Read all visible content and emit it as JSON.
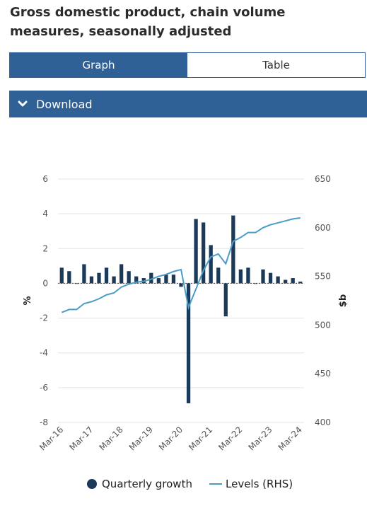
{
  "page": {
    "title": "Gross domestic product, chain volume measures, seasonally adjusted"
  },
  "tabs": [
    {
      "label": "Graph",
      "active": true
    },
    {
      "label": "Table",
      "active": false
    }
  ],
  "download": {
    "label": "Download",
    "icon": "chevron-down-icon"
  },
  "colors": {
    "accent": "#2f6196",
    "bar": "#1b3a5a",
    "line": "#4a9cc7"
  },
  "chart_data": {
    "type": "bar+line",
    "title": "",
    "x_tick_labels": [
      "Mar-16",
      "Mar-17",
      "Mar-18",
      "Mar-19",
      "Mar-20",
      "Mar-21",
      "Mar-22",
      "Mar-23",
      "Mar-24"
    ],
    "quarters": [
      "Mar-16",
      "Jun-16",
      "Sep-16",
      "Dec-16",
      "Mar-17",
      "Jun-17",
      "Sep-17",
      "Dec-17",
      "Mar-18",
      "Jun-18",
      "Sep-18",
      "Dec-18",
      "Mar-19",
      "Jun-19",
      "Sep-19",
      "Dec-19",
      "Mar-20",
      "Jun-20",
      "Sep-20",
      "Dec-20",
      "Mar-21",
      "Jun-21",
      "Sep-21",
      "Dec-21",
      "Mar-22",
      "Jun-22",
      "Sep-22",
      "Dec-22",
      "Mar-23",
      "Jun-23",
      "Sep-23",
      "Dec-23",
      "Mar-24"
    ],
    "left_axis": {
      "label": "%",
      "ylim": [
        -8,
        6
      ],
      "ticks": [
        "6",
        "4",
        "2",
        "0",
        "-2",
        "-4",
        "-6",
        "-8"
      ]
    },
    "right_axis": {
      "label": "$b",
      "ylim": [
        400,
        650
      ],
      "ticks": [
        "650",
        "600",
        "550",
        "500",
        "450",
        "400"
      ]
    },
    "grid": true,
    "legend_position": "bottom",
    "series": [
      {
        "name": "Quarterly growth",
        "type": "bar",
        "axis": "left",
        "values": [
          0.9,
          0.7,
          0.0,
          1.1,
          0.4,
          0.6,
          0.9,
          0.4,
          1.1,
          0.7,
          0.4,
          0.3,
          0.6,
          0.3,
          0.5,
          0.5,
          -0.2,
          -6.9,
          3.7,
          3.5,
          2.2,
          0.9,
          -1.9,
          3.9,
          0.8,
          0.9,
          0.0,
          0.8,
          0.6,
          0.4,
          0.2,
          0.3,
          0.1
        ]
      },
      {
        "name": "Levels (RHS)",
        "type": "line",
        "axis": "right",
        "values": [
          513,
          516,
          516,
          522,
          524,
          527,
          531,
          533,
          539,
          542,
          544,
          545,
          547,
          550,
          552,
          555,
          557,
          518,
          537,
          556,
          570,
          573,
          563,
          586,
          590,
          595,
          595,
          600,
          603,
          605,
          607,
          609,
          610
        ]
      }
    ]
  }
}
